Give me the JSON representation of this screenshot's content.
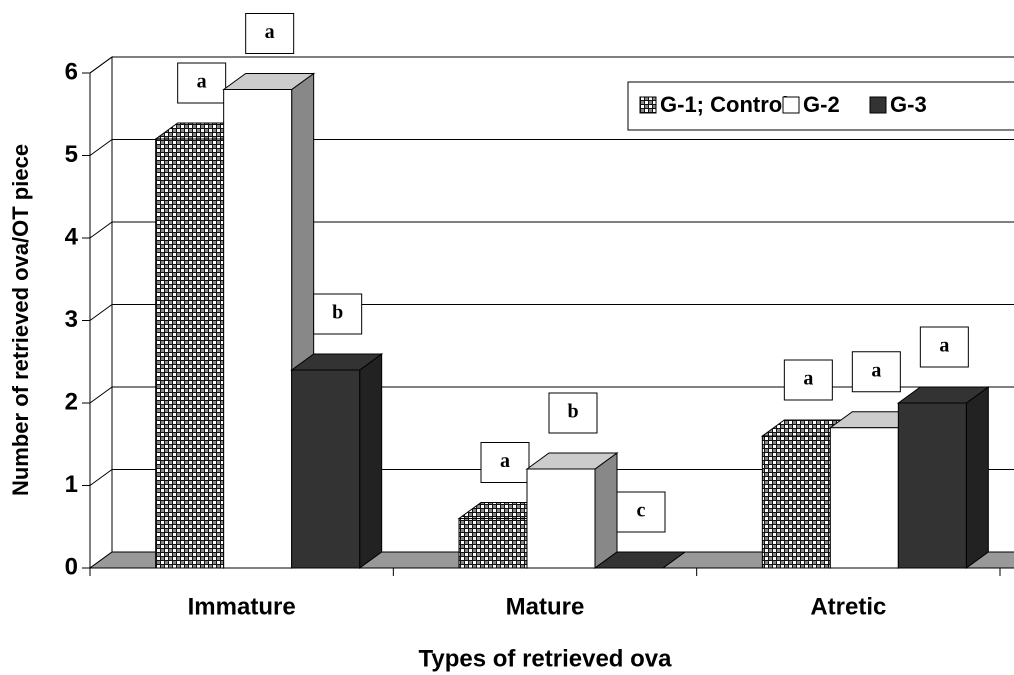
{
  "chart_data": {
    "type": "bar3d",
    "x_label": "Types of retrieved ova",
    "y_label": "Number of retrieved ova/OT piece",
    "categories": [
      "Immature",
      "Mature",
      "Atretic"
    ],
    "series": [
      {
        "name": "G-1; Control",
        "color": "checker",
        "values": [
          5.2,
          0.6,
          1.6
        ],
        "letters": [
          "a",
          "a",
          "a"
        ]
      },
      {
        "name": "G-2",
        "color": "#ffffff",
        "values": [
          5.8,
          1.2,
          1.7
        ],
        "letters": [
          "a",
          "b",
          "a"
        ]
      },
      {
        "name": "G-3",
        "color": "#333333",
        "values": [
          2.4,
          0,
          2.0
        ],
        "letters": [
          "b",
          "c",
          "a"
        ]
      }
    ],
    "ylim": [
      0,
      6
    ],
    "yticks": [
      0,
      1,
      2,
      3,
      4,
      5,
      6
    ],
    "grid": true,
    "legend": "top-right"
  }
}
